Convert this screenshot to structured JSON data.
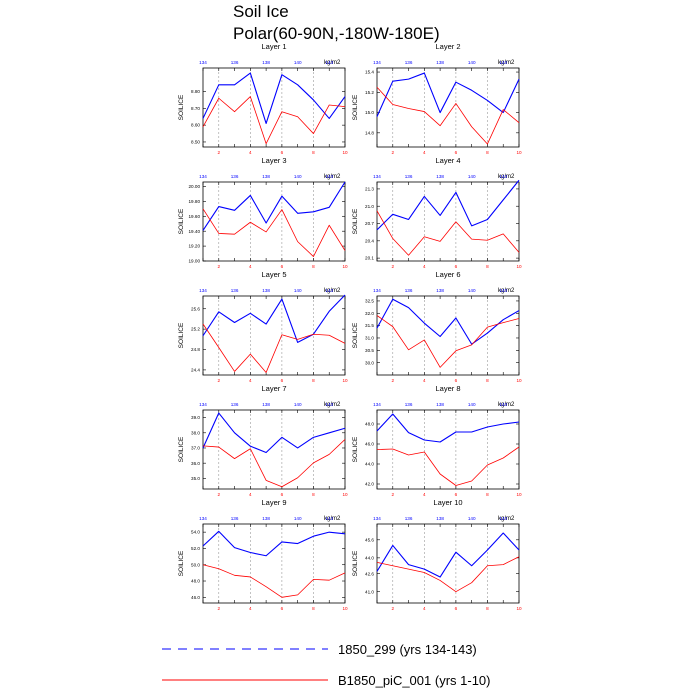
{
  "title_line1": "Soil Ice",
  "title_line2": "Polar(60-90N,-180W-180E)",
  "top_axis_units": "kg/m2",
  "ylabel": "SOILICE",
  "colors": {
    "series_a": "#0000ff",
    "series_b": "#ff0000",
    "bottom_ticks": "#ff0000",
    "top_ticks": "#0000ff"
  },
  "legend": {
    "series_a_label": "1850_299 (yrs 134-143)",
    "series_b_label": "B1850_piC_001 (yrs 1-10)"
  },
  "chart_data": [
    {
      "type": "line",
      "title": "Layer 1",
      "x": [
        1,
        2,
        3,
        4,
        5,
        6,
        7,
        8,
        9,
        10
      ],
      "top_ticks": [
        "134",
        "136",
        "138",
        "140",
        "143"
      ],
      "bottom_ticks": [
        "2",
        "4",
        "6",
        "8",
        "10"
      ],
      "yticks": [
        "8.80",
        "8.70",
        "8.60",
        "8.50"
      ],
      "ylim": [
        8.47,
        8.94
      ],
      "series": [
        {
          "values": [
            8.64,
            8.84,
            8.84,
            8.91,
            8.61,
            8.9,
            8.84,
            8.75,
            8.64,
            8.77
          ]
        },
        {
          "values": [
            8.59,
            8.76,
            8.68,
            8.77,
            8.49,
            8.68,
            8.65,
            8.55,
            8.72,
            8.71
          ]
        }
      ]
    },
    {
      "type": "line",
      "title": "Layer 2",
      "x": [
        1,
        2,
        3,
        4,
        5,
        6,
        7,
        8,
        9,
        10
      ],
      "top_ticks": [
        "134",
        "136",
        "138",
        "140",
        "143"
      ],
      "bottom_ticks": [
        "2",
        "4",
        "6",
        "8",
        "10"
      ],
      "yticks": [
        "15.4",
        "15.2",
        "15.0",
        "14.8"
      ],
      "ylim": [
        14.66,
        15.44
      ],
      "series": [
        {
          "values": [
            14.96,
            15.31,
            15.33,
            15.39,
            15.0,
            15.3,
            15.22,
            15.12,
            15.0,
            15.33
          ]
        },
        {
          "values": [
            15.25,
            15.08,
            15.04,
            15.01,
            14.87,
            15.09,
            14.86,
            14.69,
            15.03,
            14.9
          ]
        }
      ]
    },
    {
      "type": "line",
      "title": "Layer 3",
      "x": [
        1,
        2,
        3,
        4,
        5,
        6,
        7,
        8,
        9,
        10
      ],
      "top_ticks": [
        "134",
        "136",
        "138",
        "140",
        "143"
      ],
      "bottom_ticks": [
        "2",
        "4",
        "6",
        "8",
        "10"
      ],
      "yticks": [
        "20.00",
        "19.80",
        "19.60",
        "19.40",
        "19.20",
        "19.00"
      ],
      "ylim": [
        19.0,
        20.06
      ],
      "series": [
        {
          "values": [
            19.41,
            19.73,
            19.68,
            19.88,
            19.51,
            19.87,
            19.64,
            19.66,
            19.72,
            20.06
          ]
        },
        {
          "values": [
            19.7,
            19.37,
            19.36,
            19.52,
            19.39,
            19.69,
            19.26,
            19.06,
            19.48,
            19.14
          ]
        }
      ]
    },
    {
      "type": "line",
      "title": "Layer 4",
      "x": [
        1,
        2,
        3,
        4,
        5,
        6,
        7,
        8,
        9,
        10
      ],
      "top_ticks": [
        "134",
        "136",
        "138",
        "140",
        "143"
      ],
      "bottom_ticks": [
        "2",
        "4",
        "6",
        "8",
        "10"
      ],
      "yticks": [
        "21.3",
        "21.0",
        "20.7",
        "20.4",
        "20.1"
      ],
      "ylim": [
        20.05,
        21.42
      ],
      "series": [
        {
          "values": [
            20.59,
            20.86,
            20.77,
            21.17,
            20.84,
            21.24,
            20.66,
            20.77,
            21.11,
            21.45
          ]
        },
        {
          "values": [
            20.92,
            20.44,
            20.15,
            20.47,
            20.39,
            20.73,
            20.43,
            20.41,
            20.52,
            20.2
          ]
        }
      ]
    },
    {
      "type": "line",
      "title": "Layer 5",
      "x": [
        1,
        2,
        3,
        4,
        5,
        6,
        7,
        8,
        9,
        10
      ],
      "top_ticks": [
        "134",
        "136",
        "138",
        "140",
        "143"
      ],
      "bottom_ticks": [
        "2",
        "4",
        "6",
        "8",
        "10"
      ],
      "yticks": [
        "25.6",
        "25.2",
        "24.8",
        "24.4"
      ],
      "ylim": [
        24.3,
        25.85
      ],
      "series": [
        {
          "values": [
            25.07,
            25.54,
            25.33,
            25.51,
            25.3,
            25.79,
            24.94,
            25.1,
            25.55,
            25.87
          ]
        },
        {
          "values": [
            25.3,
            24.84,
            24.37,
            24.71,
            24.35,
            25.09,
            25.0,
            25.1,
            25.08,
            24.92
          ]
        }
      ]
    },
    {
      "type": "line",
      "title": "Layer 6",
      "x": [
        1,
        2,
        3,
        4,
        5,
        6,
        7,
        8,
        9,
        10
      ],
      "top_ticks": [
        "134",
        "136",
        "138",
        "140",
        "143"
      ],
      "bottom_ticks": [
        "2",
        "4",
        "6",
        "8",
        "10"
      ],
      "yticks": [
        "32.5",
        "32.0",
        "31.5",
        "31.0",
        "30.5",
        "30.0"
      ],
      "ylim": [
        29.5,
        32.7
      ],
      "series": [
        {
          "values": [
            31.4,
            32.57,
            32.23,
            31.6,
            31.06,
            31.81,
            30.75,
            31.2,
            31.74,
            32.11
          ]
        },
        {
          "values": [
            31.91,
            31.46,
            30.52,
            30.92,
            29.81,
            30.48,
            30.72,
            31.44,
            31.62,
            31.79
          ]
        }
      ]
    },
    {
      "type": "line",
      "title": "Layer 7",
      "x": [
        1,
        2,
        3,
        4,
        5,
        6,
        7,
        8,
        9,
        10
      ],
      "top_ticks": [
        "134",
        "136",
        "138",
        "140",
        "143"
      ],
      "bottom_ticks": [
        "2",
        "4",
        "6",
        "8",
        "10"
      ],
      "yticks": [
        "39.0",
        "38.0",
        "37.0",
        "36.0",
        "35.0"
      ],
      "ylim": [
        34.3,
        39.5
      ],
      "series": [
        {
          "values": [
            37.0,
            39.3,
            38.0,
            37.12,
            36.7,
            37.7,
            37.0,
            37.7,
            38.0,
            38.3
          ]
        },
        {
          "values": [
            37.14,
            37.06,
            36.3,
            36.95,
            34.87,
            34.45,
            35.04,
            36.02,
            36.58,
            37.56
          ]
        }
      ]
    },
    {
      "type": "line",
      "title": "Layer 8",
      "x": [
        1,
        2,
        3,
        4,
        5,
        6,
        7,
        8,
        9,
        10
      ],
      "top_ticks": [
        "134",
        "136",
        "138",
        "140",
        "143"
      ],
      "bottom_ticks": [
        "2",
        "4",
        "6",
        "8",
        "10"
      ],
      "yticks": [
        "48.0",
        "46.0",
        "44.0",
        "42.0"
      ],
      "ylim": [
        41.5,
        49.4
      ],
      "series": [
        {
          "values": [
            47.3,
            49.0,
            47.14,
            46.4,
            46.2,
            47.2,
            47.2,
            47.7,
            48.0,
            48.2
          ]
        },
        {
          "values": [
            45.44,
            45.5,
            44.9,
            45.2,
            43.0,
            41.85,
            42.3,
            43.9,
            44.6,
            45.7
          ]
        }
      ]
    },
    {
      "type": "line",
      "title": "Layer 9",
      "x": [
        1,
        2,
        3,
        4,
        5,
        6,
        7,
        8,
        9,
        10
      ],
      "top_ticks": [
        "134",
        "136",
        "138",
        "140",
        "143"
      ],
      "bottom_ticks": [
        "2",
        "4",
        "6",
        "8",
        "10"
      ],
      "yticks": [
        "54.0",
        "52.0",
        "50.0",
        "48.0",
        "46.0"
      ],
      "ylim": [
        45.3,
        55.0
      ],
      "series": [
        {
          "values": [
            52.3,
            54.1,
            52.1,
            51.5,
            51.1,
            52.8,
            52.6,
            53.5,
            54.0,
            53.8
          ]
        },
        {
          "values": [
            50.0,
            49.5,
            48.7,
            48.5,
            47.3,
            46.0,
            46.3,
            48.2,
            48.1,
            49.0
          ]
        }
      ]
    },
    {
      "type": "line",
      "title": "Layer 10",
      "x": [
        1,
        2,
        3,
        4,
        5,
        6,
        7,
        8,
        9,
        10
      ],
      "top_ticks": [
        "134",
        "136",
        "138",
        "140",
        "143"
      ],
      "bottom_ticks": [
        "2",
        "4",
        "6",
        "8",
        "10"
      ],
      "yticks": [
        "45.6",
        "44.0",
        "42.6",
        "41.0"
      ],
      "ylim": [
        40.0,
        47.0
      ],
      "series": [
        {
          "values": [
            42.8,
            45.1,
            43.4,
            43.0,
            42.3,
            44.5,
            43.3,
            44.7,
            46.2,
            44.7
          ]
        },
        {
          "values": [
            43.6,
            43.3,
            43.0,
            42.7,
            42.0,
            41.0,
            41.8,
            43.3,
            43.4,
            44.1
          ]
        }
      ]
    }
  ]
}
